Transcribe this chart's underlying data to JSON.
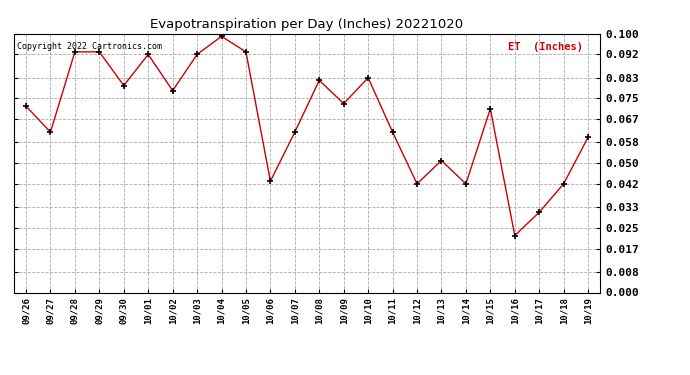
{
  "title": "Evapotranspiration per Day (Inches) 20221020",
  "copyright_text": "Copyright 2022 Cartronics.com",
  "legend_label": "ET  (Inches)",
  "x_labels": [
    "09/26",
    "09/27",
    "09/28",
    "09/29",
    "09/30",
    "10/01",
    "10/02",
    "10/03",
    "10/04",
    "10/05",
    "10/06",
    "10/07",
    "10/08",
    "10/09",
    "10/10",
    "10/11",
    "10/12",
    "10/13",
    "10/14",
    "10/15",
    "10/16",
    "10/17",
    "10/18",
    "10/19"
  ],
  "y_values": [
    0.072,
    0.062,
    0.093,
    0.093,
    0.08,
    0.092,
    0.078,
    0.092,
    0.099,
    0.093,
    0.043,
    0.062,
    0.082,
    0.073,
    0.083,
    0.062,
    0.042,
    0.051,
    0.042,
    0.071,
    0.022,
    0.031,
    0.042,
    0.06
  ],
  "line_color": "#cc0000",
  "marker_color": "#000000",
  "background_color": "#ffffff",
  "grid_color": "#aaaaaa",
  "title_color": "#000000",
  "copyright_color": "#000000",
  "legend_color": "#cc0000",
  "ylim": [
    0.0,
    0.1
  ],
  "yticks": [
    0.0,
    0.008,
    0.017,
    0.025,
    0.033,
    0.042,
    0.05,
    0.058,
    0.067,
    0.075,
    0.083,
    0.092,
    0.1
  ]
}
